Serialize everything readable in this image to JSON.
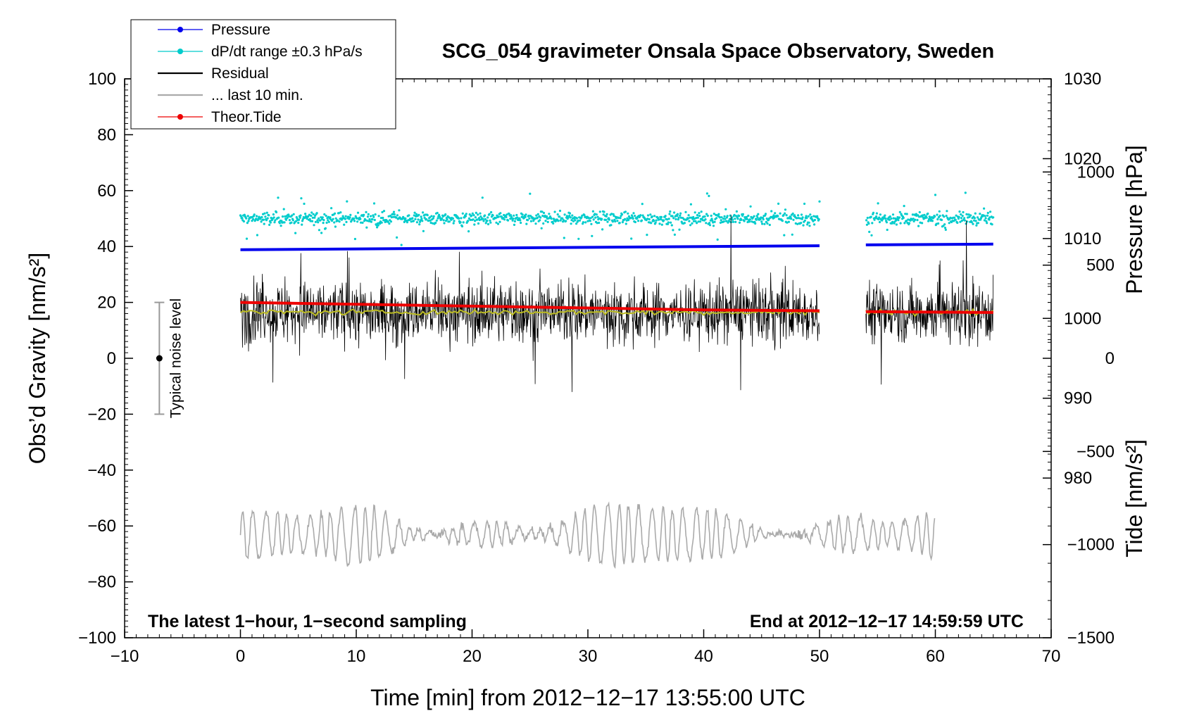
{
  "chart_data": {
    "type": "line",
    "title": "SCG_054 gravimeter Onsala Space Observatory, Sweden",
    "xlabel": "Time [min] from 2012−12−17 13:55:00 UTC",
    "ylabel_left": "Obs’d Gravity [nm/s²]",
    "ylabel_right_top": "Pressure [hPa]",
    "ylabel_right_bottom": "Tide [nm/s²]",
    "xlim": [
      -10,
      70
    ],
    "ylim_left": [
      -100,
      100
    ],
    "ylim_pressure": [
      960,
      1030
    ],
    "ylim_tide": [
      -1500,
      1500
    ],
    "x_ticks": [
      -10,
      0,
      10,
      20,
      30,
      40,
      50,
      60,
      70
    ],
    "x_tick_labels": [
      "−10",
      "0",
      "10",
      "20",
      "30",
      "40",
      "50",
      "60",
      "70"
    ],
    "y_left_ticks": [
      -100,
      -80,
      -60,
      -40,
      -20,
      0,
      20,
      40,
      60,
      80,
      100
    ],
    "y_left_tick_labels": [
      "−100",
      "−80",
      "−60",
      "−40",
      "−20",
      "0",
      "20",
      "40",
      "60",
      "80",
      "100"
    ],
    "pressure_ticks": [
      980,
      990,
      1000,
      1010,
      1020,
      1030
    ],
    "pressure_tick_labels": [
      "980",
      "990",
      "1000",
      "1010",
      "1020",
      "1030"
    ],
    "tide_ticks": [
      -1500,
      -1000,
      -500,
      0,
      500,
      1000
    ],
    "tide_tick_labels": [
      "−1500",
      "−1000",
      "−500",
      "0",
      "500",
      "1000"
    ],
    "legend_position": "top-left",
    "legend": [
      {
        "label": "Pressure",
        "color": "#0000ee",
        "marker": true
      },
      {
        "label": "dP/dt range ±0.3 hPa/s",
        "color": "#00cccc",
        "marker": true
      },
      {
        "label": "Residual",
        "color": "#000000",
        "marker": false
      },
      {
        "label": "... last 10 min.",
        "color": "#aaaaaa",
        "marker": false
      },
      {
        "label": "Theor.Tide",
        "color": "#ee0000",
        "marker": true
      }
    ],
    "annotations": {
      "left": "The latest 1−hour, 1−second sampling",
      "right": "End at 2012−12−17 14:59:59 UTC"
    },
    "noise_bar": {
      "label": "Typical noise level",
      "x": -7,
      "center": 0,
      "low": -20,
      "high": 20
    },
    "data_gap": [
      50,
      54
    ],
    "series": [
      {
        "name": "Pressure",
        "color": "#0000ee",
        "x": [
          0,
          50,
          54,
          65
        ],
        "y": [
          1008.6,
          1009.1,
          1009.2,
          1009.3
        ]
      },
      {
        "name": "dP/dt range ±0.3 hPa/s",
        "color": "#00cccc",
        "center": 50,
        "spread": 2.5
      },
      {
        "name": "Residual",
        "color": "#000000",
        "center": 16.5,
        "spread": 10
      },
      {
        "name": "Residual mean",
        "color": "#bbbb22",
        "value": 16.5
      },
      {
        "name": "Theor.Tide",
        "color": "#ee0000",
        "x": [
          0,
          10,
          20,
          30,
          40,
          50,
          54,
          60,
          65
        ],
        "y": [
          300,
          290,
          280,
          270,
          260,
          255,
          250,
          248,
          246
        ]
      },
      {
        "name": "... last 10 min.",
        "color": "#aaaaaa",
        "x_range": [
          0,
          60
        ],
        "center": -63,
        "spread": 10
      }
    ]
  }
}
